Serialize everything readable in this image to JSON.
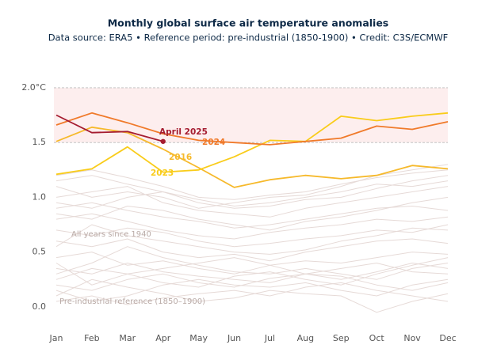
{
  "chart_data": {
    "type": "line",
    "title": "Monthly global surface air temperature anomalies",
    "subtitle": "Data source: ERA5 • Reference period: pre-industrial (1850-1900) • Credit: C3S/ECMWF",
    "categories": [
      "Jan",
      "Feb",
      "Mar",
      "Apr",
      "May",
      "Jun",
      "Jul",
      "Aug",
      "Sep",
      "Oct",
      "Nov",
      "Dec"
    ],
    "ylim": [
      -0.12,
      2.05
    ],
    "yticks": [
      {
        "value": 2,
        "label": "2.0°C"
      },
      1.5,
      {
        "value": 1,
        "label": "1.0"
      },
      0.5,
      {
        "value": 0,
        "label": "0.0"
      }
    ],
    "band": [
      1.5,
      2.0
    ],
    "band_color": "#fdeeee",
    "series": [
      {
        "name": "2016",
        "color": "#f6b92b",
        "values": [
          1.51,
          1.64,
          1.59,
          1.44,
          1.27,
          1.09,
          1.16,
          1.2,
          1.17,
          1.2,
          1.29,
          1.26
        ]
      },
      {
        "name": "2023",
        "color": "#f9cc1a",
        "values": [
          1.21,
          1.26,
          1.46,
          1.23,
          1.25,
          1.37,
          1.52,
          1.51,
          1.74,
          1.7,
          1.74,
          1.77
        ]
      },
      {
        "name": "2024",
        "color": "#f07a2a",
        "values": [
          1.66,
          1.77,
          1.68,
          1.58,
          1.52,
          1.5,
          1.48,
          1.51,
          1.54,
          1.65,
          1.62,
          1.69
        ]
      },
      {
        "name": "April 2025",
        "color": "#a51c30",
        "values": [
          1.75,
          1.59,
          1.6,
          1.51,
          null,
          null,
          null,
          null,
          null,
          null,
          null,
          null
        ]
      }
    ],
    "background_color": "#e6dad7",
    "background_series": [
      {
        "values": [
          0.05,
          0.1,
          0.02,
          0.08,
          0.12,
          0.15,
          0.1,
          0.18,
          0.22,
          0.15,
          0.1,
          0.05
        ]
      },
      {
        "values": [
          0.2,
          0.15,
          0.25,
          0.3,
          0.22,
          0.18,
          0.26,
          0.3,
          0.28,
          0.2,
          0.15,
          0.22
        ]
      },
      {
        "values": [
          0.35,
          0.3,
          0.4,
          0.32,
          0.28,
          0.25,
          0.22,
          0.3,
          0.35,
          0.4,
          0.32,
          0.3
        ]
      },
      {
        "values": [
          0.1,
          0.25,
          0.18,
          0.12,
          0.05,
          0.08,
          0.15,
          0.12,
          0.1,
          -0.05,
          0.05,
          0.12
        ]
      },
      {
        "values": [
          0.45,
          0.5,
          0.38,
          0.42,
          0.35,
          0.3,
          0.38,
          0.42,
          0.4,
          0.45,
          0.5,
          0.48
        ]
      },
      {
        "values": [
          0.6,
          0.55,
          0.62,
          0.5,
          0.45,
          0.48,
          0.42,
          0.5,
          0.55,
          0.6,
          0.62,
          0.58
        ]
      },
      {
        "values": [
          0.3,
          0.4,
          0.55,
          0.45,
          0.38,
          0.32,
          0.3,
          0.35,
          0.3,
          0.25,
          0.35,
          0.4
        ]
      },
      {
        "values": [
          0.7,
          0.65,
          0.72,
          0.68,
          0.6,
          0.55,
          0.58,
          0.62,
          0.65,
          0.7,
          0.68,
          0.75
        ]
      },
      {
        "values": [
          0.8,
          0.85,
          0.78,
          0.7,
          0.65,
          0.62,
          0.68,
          0.72,
          0.75,
          0.8,
          0.78,
          0.82
        ]
      },
      {
        "values": [
          0.9,
          0.95,
          0.88,
          0.82,
          0.78,
          0.72,
          0.75,
          0.8,
          0.85,
          0.9,
          0.92,
          0.88
        ]
      },
      {
        "values": [
          1.0,
          1.05,
          1.1,
          0.95,
          0.88,
          0.85,
          0.82,
          0.9,
          0.95,
          1.0,
          1.05,
          1.1
        ]
      },
      {
        "values": [
          1.15,
          1.2,
          1.12,
          1.05,
          0.98,
          0.92,
          0.95,
          1.0,
          1.05,
          1.12,
          1.1,
          1.15
        ]
      },
      {
        "values": [
          1.1,
          1.0,
          1.05,
          1.0,
          0.9,
          0.95,
          1.0,
          1.02,
          1.1,
          1.2,
          1.25,
          1.3
        ]
      },
      {
        "values": [
          0.95,
          0.9,
          1.0,
          1.05,
          0.95,
          0.9,
          0.92,
          0.98,
          1.0,
          1.08,
          1.15,
          1.2
        ]
      },
      {
        "values": [
          0.55,
          0.75,
          0.65,
          0.6,
          0.55,
          0.5,
          0.48,
          0.52,
          0.6,
          0.65,
          0.72,
          0.7
        ]
      },
      {
        "values": [
          0.15,
          0.05,
          0.1,
          0.2,
          0.25,
          0.2,
          0.18,
          0.22,
          0.15,
          0.1,
          0.2,
          0.25
        ]
      },
      {
        "values": [
          0.25,
          0.35,
          0.3,
          0.22,
          0.18,
          0.28,
          0.32,
          0.25,
          0.2,
          0.3,
          0.38,
          0.45
        ]
      },
      {
        "values": [
          0.85,
          0.8,
          0.92,
          0.88,
          0.8,
          0.75,
          0.7,
          0.78,
          0.82,
          0.88,
          0.95,
          1.0
        ]
      },
      {
        "values": [
          0.4,
          0.2,
          0.3,
          0.35,
          0.4,
          0.45,
          0.38,
          0.3,
          0.25,
          0.32,
          0.4,
          0.35
        ]
      },
      {
        "values": [
          1.2,
          1.25,
          1.18,
          1.1,
          1.0,
          0.98,
          1.02,
          1.05,
          1.12,
          1.18,
          1.22,
          1.25
        ]
      }
    ],
    "annotations": [
      "All years since 1940",
      "Pre-industrial reference (1850–1900)"
    ]
  }
}
